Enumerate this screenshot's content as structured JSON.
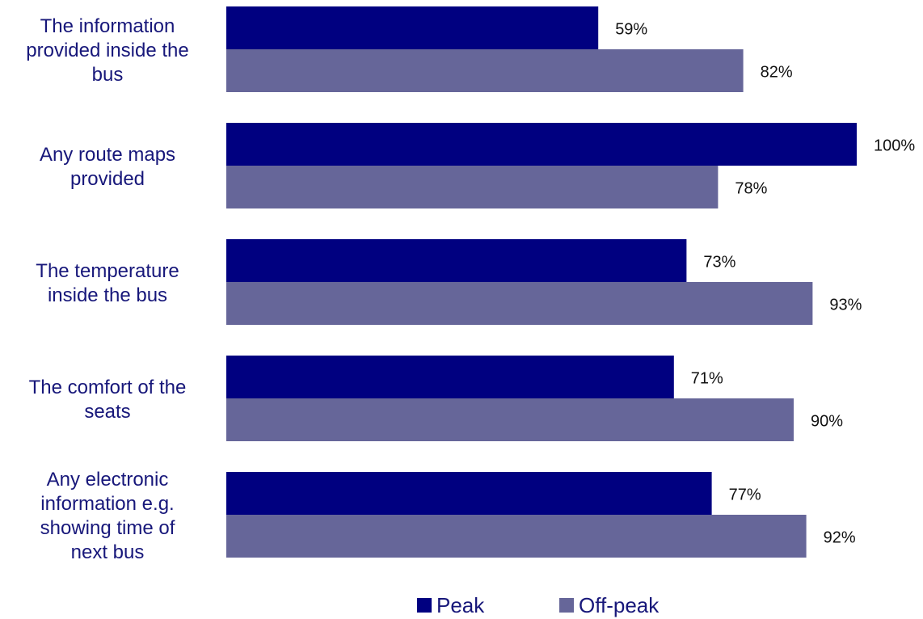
{
  "chart_data": {
    "type": "bar",
    "orientation": "horizontal",
    "categories": [
      "The information provided inside the bus",
      "Any route maps provided",
      "The temperature inside the bus",
      "The comfort of the seats",
      "Any electronic information e.g. showing time of next bus"
    ],
    "category_lines": [
      [
        "The information",
        "provided inside the",
        "bus"
      ],
      [
        "Any route maps",
        "provided"
      ],
      [
        "The temperature",
        "inside the bus"
      ],
      [
        "The comfort of the",
        "seats"
      ],
      [
        "Any electronic",
        "information e.g.",
        "showing time of",
        "next bus"
      ]
    ],
    "series": [
      {
        "name": "Peak",
        "color": "#000080",
        "values": [
          59,
          100,
          73,
          71,
          77
        ],
        "labels": [
          "59%",
          "100%",
          "73%",
          "71%",
          "77%"
        ]
      },
      {
        "name": "Off-peak",
        "color": "#666699",
        "values": [
          82,
          78,
          93,
          90,
          92
        ],
        "labels": [
          "82%",
          "78%",
          "93%",
          "90%",
          "92%"
        ]
      }
    ],
    "xlim": [
      0,
      100
    ],
    "grid": false,
    "legend_position": "bottom",
    "title": "",
    "xlabel": "",
    "ylabel": ""
  }
}
